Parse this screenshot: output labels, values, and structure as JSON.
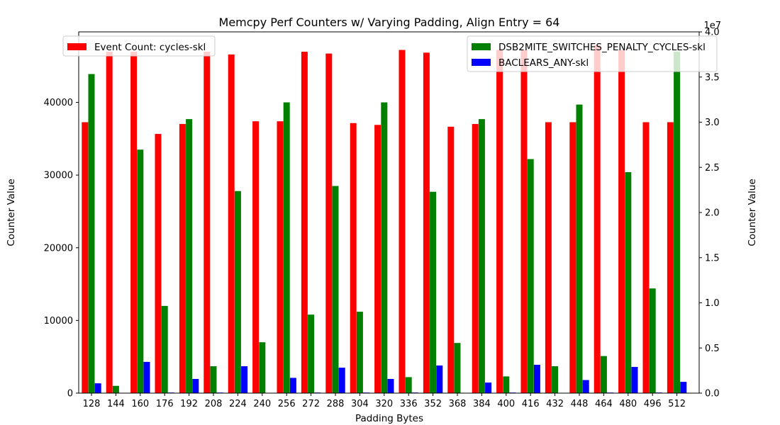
{
  "chart_data": {
    "type": "bar",
    "title": "Memcpy Perf Counters w/ Varying Padding, Align Entry = 64",
    "xlabel": "Padding Bytes",
    "ylabel_left": "Counter Value",
    "ylabel_right": "Counter Value",
    "right_axis_multiplier": "1e7",
    "categories": [
      "128",
      "144",
      "160",
      "176",
      "192",
      "208",
      "224",
      "240",
      "256",
      "272",
      "288",
      "304",
      "320",
      "336",
      "352",
      "368",
      "384",
      "400",
      "416",
      "432",
      "448",
      "464",
      "480",
      "496",
      "512"
    ],
    "left_axis": {
      "ylim": [
        0,
        49700
      ],
      "ticks": [
        0,
        10000,
        20000,
        30000,
        40000
      ],
      "tick_labels": [
        "0",
        "10000",
        "20000",
        "30000",
        "40000"
      ]
    },
    "right_axis": {
      "ylim": [
        0,
        4.0
      ],
      "ticks": [
        0.0,
        0.5,
        1.0,
        1.5,
        2.0,
        2.5,
        3.0,
        3.5,
        4.0
      ],
      "tick_labels": [
        "0.0",
        "0.5",
        "1.0",
        "1.5",
        "2.0",
        "2.5",
        "3.0",
        "3.5",
        "4.0"
      ]
    },
    "series": [
      {
        "name": "Event Count: cycles-skl",
        "axis": "right",
        "color": "#ff0000",
        "values": [
          3.0,
          3.78,
          3.78,
          2.87,
          2.98,
          3.78,
          3.75,
          3.01,
          3.01,
          3.78,
          3.76,
          2.99,
          2.97,
          3.8,
          3.77,
          2.95,
          2.98,
          3.8,
          3.8,
          3.0,
          3.0,
          3.85,
          3.8,
          3.0,
          3.0
        ]
      },
      {
        "name": "DSB2MITE_SWITCHES_PENALTY_CYCLES-skl",
        "axis": "left",
        "color": "#008000",
        "values": [
          43900,
          1000,
          33500,
          12000,
          37700,
          3700,
          27800,
          7000,
          40000,
          10800,
          28500,
          11200,
          40000,
          2200,
          27700,
          6900,
          37700,
          2300,
          32200,
          3700,
          39700,
          5100,
          30400,
          14400,
          47000
        ]
      },
      {
        "name": "BACLEARS_ANY-skl",
        "axis": "left",
        "color": "#0000ff",
        "values": [
          1350,
          50,
          4300,
          80,
          1950,
          80,
          3700,
          0,
          2100,
          80,
          3500,
          80,
          1950,
          80,
          3800,
          0,
          1450,
          80,
          3900,
          0,
          1800,
          80,
          3600,
          80,
          1550
        ]
      }
    ],
    "legends": [
      {
        "placement": "upper-left",
        "entries": [
          0
        ]
      },
      {
        "placement": "upper-right",
        "entries": [
          1,
          2
        ]
      }
    ]
  }
}
